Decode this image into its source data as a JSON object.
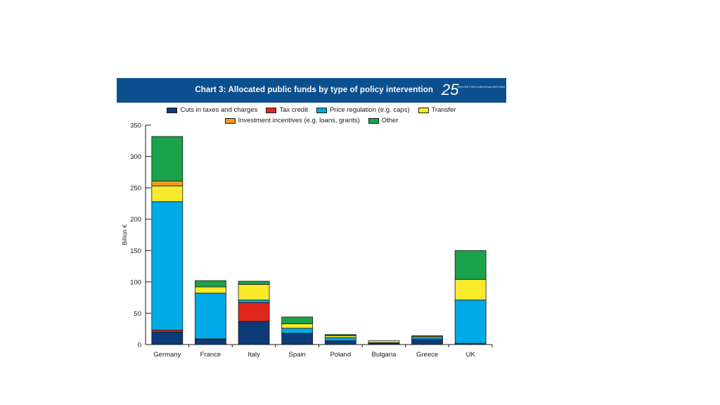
{
  "banner": {
    "title": "Chart 3: Allocated public funds by type of policy intervention",
    "logo_digits": "25",
    "logo_text": "CENTRE FOR EUROPEAN REFORM"
  },
  "chart_data": {
    "type": "bar",
    "stacked": true,
    "title": "Chart 3: Allocated public funds by type of policy intervention",
    "xlabel": "",
    "ylabel": "Billion €",
    "ylim": [
      0,
      350
    ],
    "yticks": [
      0,
      50,
      100,
      150,
      200,
      250,
      300,
      350
    ],
    "grid": false,
    "legend_position": "top",
    "categories": [
      "Germany",
      "France",
      "Italy",
      "Spain",
      "Poland",
      "Bulgaria",
      "Greece",
      "UK"
    ],
    "series": [
      {
        "name": "Cuts in taxes and charges",
        "color": "#0d3b78",
        "values": [
          20,
          8,
          37,
          18,
          6,
          2,
          8,
          2
        ]
      },
      {
        "name": "Tax credit",
        "color": "#e1261c",
        "values": [
          3,
          1,
          30,
          0,
          0,
          0,
          0,
          0
        ]
      },
      {
        "name": "Price regulation (e.g. caps)",
        "color": "#00aae6",
        "values": [
          205,
          73,
          4,
          8,
          5,
          1,
          3,
          69
        ]
      },
      {
        "name": "Transfer",
        "color": "#f9ea2c",
        "values": [
          25,
          10,
          25,
          7,
          3,
          3,
          2,
          33
        ]
      },
      {
        "name": "Investment incentives (e.g. loans, grants)",
        "color": "#f39a1e",
        "values": [
          8,
          0,
          0,
          0,
          0,
          0,
          0,
          0
        ]
      },
      {
        "name": "Other",
        "color": "#1aa34a",
        "values": [
          71,
          10,
          5,
          11,
          2,
          0,
          1,
          46
        ]
      }
    ]
  }
}
